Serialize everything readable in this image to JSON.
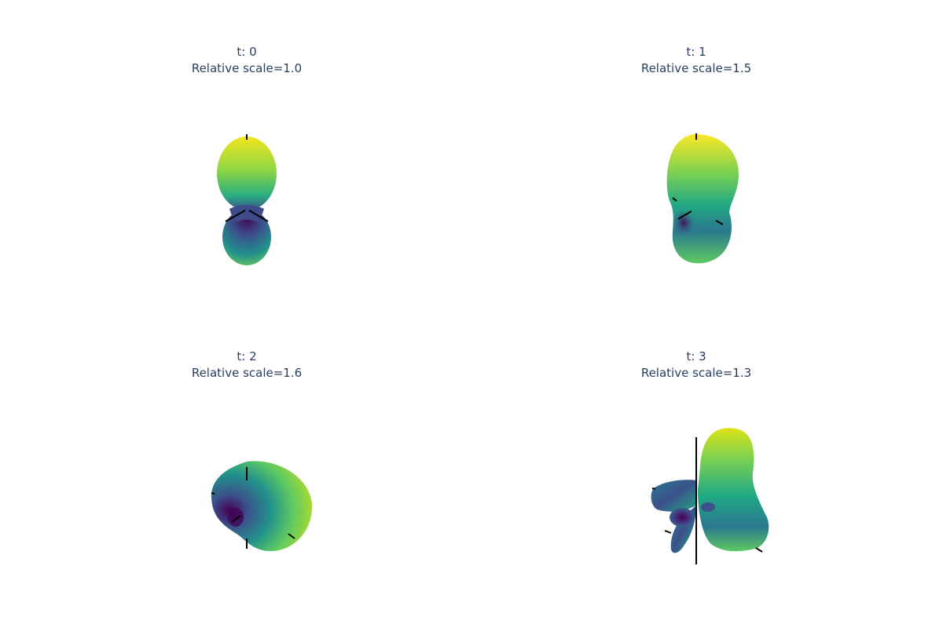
{
  "panels": [
    {
      "title": "t: 0",
      "subtitle": "Relative scale=1.0"
    },
    {
      "title": "t: 1",
      "subtitle": "Relative scale=1.5"
    },
    {
      "title": "t: 2",
      "subtitle": "Relative scale=1.6"
    },
    {
      "title": "t: 3",
      "subtitle": "Relative scale=1.3"
    }
  ],
  "chart_data": [
    {
      "type": "surface",
      "title": "t: 0",
      "subtitle": "Relative scale=1.0",
      "relative_scale": 1.0,
      "colorscale": "viridis"
    },
    {
      "type": "surface",
      "title": "t: 1",
      "subtitle": "Relative scale=1.5",
      "relative_scale": 1.5,
      "colorscale": "viridis"
    },
    {
      "type": "surface",
      "title": "t: 2",
      "subtitle": "Relative scale=1.6",
      "relative_scale": 1.6,
      "colorscale": "viridis"
    },
    {
      "type": "surface",
      "title": "t: 3",
      "subtitle": "Relative scale=1.3",
      "relative_scale": 1.3,
      "colorscale": "viridis"
    }
  ],
  "colors": {
    "title": "#2a3f5f",
    "axis": "#000000",
    "viridis_dark": "#440154",
    "viridis_mid": "#21918c",
    "viridis_light": "#fde725"
  }
}
